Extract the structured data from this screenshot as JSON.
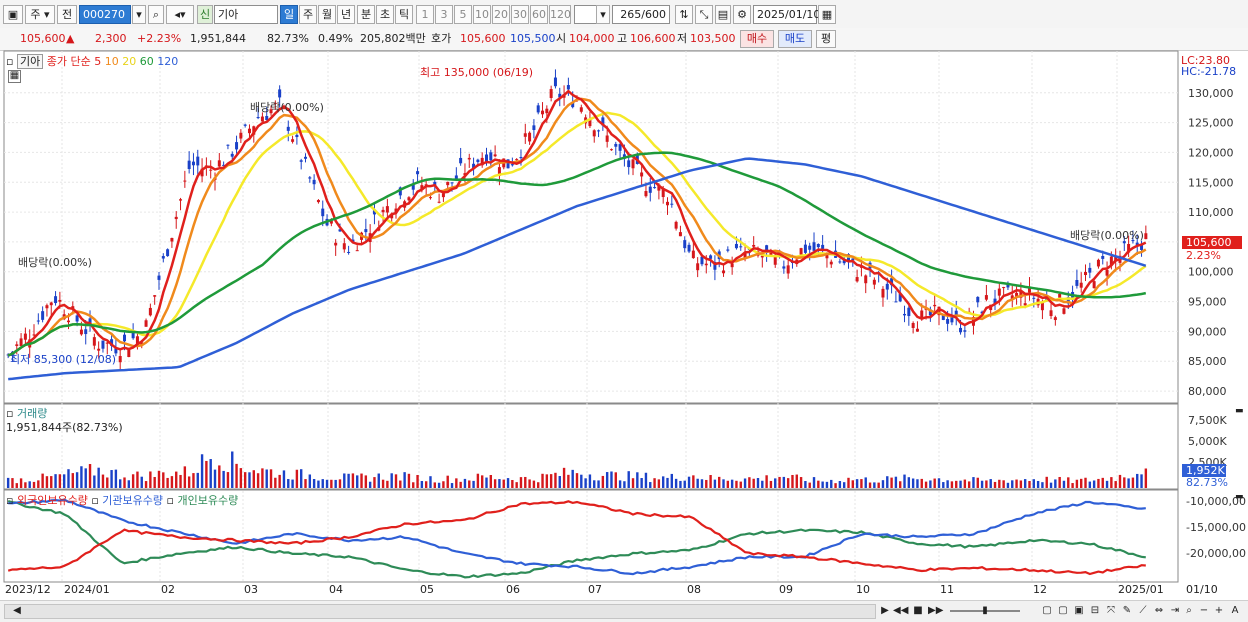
{
  "toolbar": {
    "mode_label": "주",
    "prev_label": "전",
    "code_value": "000270",
    "new_label": "신",
    "name_value": "기아",
    "periods": [
      "일",
      "주",
      "월",
      "년",
      "분",
      "초",
      "틱"
    ],
    "active_period": "일",
    "intervals": [
      "1",
      "3",
      "5",
      "10",
      "20",
      "30",
      "60",
      "120"
    ],
    "count_value": "265",
    "count_total": "/600",
    "date_value": "2025/01/10"
  },
  "quote": {
    "price": "105,600",
    "arrow": "▲",
    "change": "2,300",
    "change_pct": "+2.23%",
    "volume": "1,951,844",
    "vol_ratio": "82.73%",
    "turnover": "0.49%",
    "amount": "205,802백만",
    "ask_label": "호가",
    "ask": "105,600",
    "bid": "105,500",
    "open_label": "시",
    "open": "104,000",
    "high_label": "고",
    "high": "106,600",
    "low_label": "저",
    "low": "103,500",
    "buy_label": "매수",
    "sell_label": "매도",
    "eval_label": "평"
  },
  "price_pane": {
    "legend_name": "기아",
    "legend_items": [
      "종가",
      "단순",
      "5",
      "10",
      "20",
      "60",
      "120"
    ],
    "lc": "LC:23.80",
    "hc": "HC:-21.78",
    "current_tag": "105,600",
    "current_pct": "2.23%",
    "annotations": {
      "high": "최고 135,000 (06/19)",
      "low": "최저 85,300 (12/08)",
      "div1": "배당락(0.00%)",
      "div2": "배당락(0.00%)",
      "div3": "배당락(0.00%)"
    },
    "y_ticks": [
      "130,000",
      "125,000",
      "120,000",
      "115,000",
      "110,000",
      "100,000",
      "95,000",
      "90,000",
      "85,000",
      "80,000"
    ]
  },
  "volume_pane": {
    "title": "거래량",
    "value": "1,951,844주(82.73%)",
    "y_ticks": [
      "7,500K",
      "5,000K",
      "2,500K"
    ],
    "current_tag": "1,952K",
    "current_pct": "82.73%"
  },
  "holdings_pane": {
    "legend": [
      "외국인보유수량",
      "기관보유수량",
      "개인보유수량"
    ],
    "y_ticks": [
      "-10,000,00",
      "-15,000,00",
      "-20,000,00"
    ]
  },
  "dates": [
    "2023/12",
    "2024/01",
    "02",
    "03",
    "04",
    "05",
    "06",
    "07",
    "08",
    "09",
    "10",
    "11",
    "12",
    "2025/01",
    "01/10"
  ],
  "colors": {
    "up": "#d5171b",
    "down": "#1a41c8",
    "ma5": "#e0201c",
    "ma10": "#f08a1c",
    "ma20": "#f5e92a",
    "ma60": "#1f9a3a",
    "ma120": "#2f5fd6",
    "foreign": "#e0201c",
    "institution": "#2f5fd6",
    "individual": "#2e8b57"
  },
  "chart_data": {
    "type": "candlestick",
    "x_range": [
      "2023/12",
      "2025/01/10"
    ],
    "price_ylim": [
      78000,
      137000
    ],
    "ma_close_approx": [
      86000,
      90000,
      96000,
      92000,
      88000,
      87500,
      90000,
      104000,
      118000,
      117000,
      121000,
      126000,
      128000,
      118000,
      108000,
      104000,
      108000,
      112000,
      115000,
      113000,
      117000,
      120000,
      118000,
      123000,
      130000,
      129000,
      124000,
      119000,
      115000,
      113000,
      102000,
      101000,
      103000,
      103000,
      101000,
      104000,
      103000,
      101000,
      99000,
      96000,
      92000,
      93000,
      91000,
      95000,
      96000,
      96000,
      94000,
      97000,
      101000,
      103000,
      105600
    ],
    "ma120_approx": [
      82000,
      83000,
      83500,
      84000,
      88000,
      93000,
      97000,
      100000,
      103000,
      107000,
      111000,
      114000,
      117000,
      119000,
      118000,
      116000,
      113000,
      110000,
      107000,
      104000,
      101000
    ],
    "volume_approx_k": [
      800,
      900,
      1100,
      1500,
      1800,
      1300,
      1200,
      1500,
      1600,
      3400,
      2400,
      1800,
      1500,
      1300,
      1200,
      1000,
      1100,
      1200,
      1000,
      900,
      900,
      1100,
      1000,
      900,
      1300,
      1600,
      1300,
      1200,
      1100,
      1000,
      1300,
      900,
      1000,
      900,
      1200,
      800,
      700,
      900,
      800,
      900,
      1000,
      900,
      800,
      700,
      800,
      900,
      800,
      700,
      900,
      1200,
      1952
    ],
    "foreign_holdings_approx": [
      -20500000,
      -20000000,
      -14500000,
      -15500000,
      -16000000,
      -16500000,
      -15500000,
      -13500000,
      -13000000,
      -10500000,
      -10200000,
      -12000000,
      -12500000,
      -18000000,
      -18500000,
      -19500000,
      -20500000,
      -20200000,
      -20500000,
      -21000000,
      -19800000
    ],
    "institution_holdings_approx": [
      -10500000,
      -9900000,
      -13000000,
      -14800000,
      -16500000,
      -15000000,
      -16000000,
      -15500000,
      -18000000,
      -19500000,
      -20000000,
      -21000000,
      -20000000,
      -18500000,
      -18500000,
      -15000000,
      -15500000,
      -15000000,
      -12000000,
      -10200000,
      -11300000
    ],
    "individual_holdings_approx": [
      -10200000,
      -12000000,
      -19500000,
      -18000000,
      -17000000,
      -18000000,
      -18500000,
      -20500000,
      -21500000,
      -21000000,
      -19000000,
      -18000000,
      -17500000,
      -15000000,
      -14500000,
      -14800000,
      -16500000,
      -17000000,
      -16000000,
      -16500000,
      -18500000
    ]
  }
}
